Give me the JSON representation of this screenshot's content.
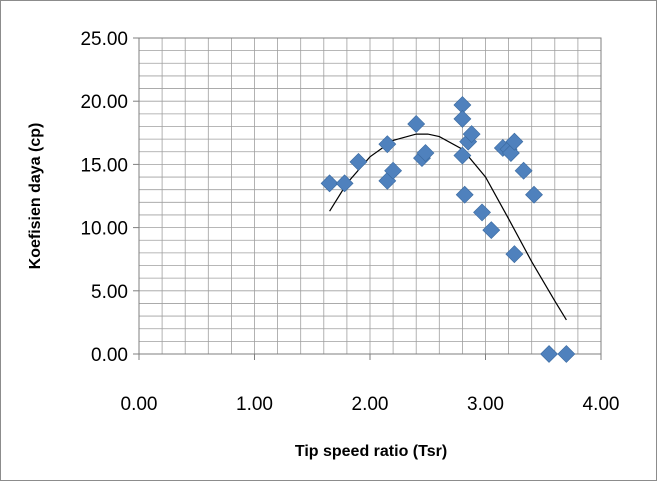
{
  "chart_data": {
    "type": "scatter",
    "title": "",
    "xlabel": "Tip speed ratio (Tsr)",
    "ylabel": "Koefisien daya (cp)",
    "xlim": [
      0,
      4
    ],
    "ylim": [
      0,
      25
    ],
    "x_ticks": [
      "0.00",
      "1.00",
      "2.00",
      "3.00",
      "4.00"
    ],
    "y_ticks": [
      "0.00",
      "5.00",
      "10.00",
      "15.00",
      "20.00",
      "25.00"
    ],
    "grid": true,
    "legend": "none",
    "marker": "diamond",
    "marker_color": "#4f81bd",
    "series": [
      {
        "values": [
          {
            "x": 1.65,
            "y": 13.5
          },
          {
            "x": 1.78,
            "y": 13.5
          },
          {
            "x": 1.9,
            "y": 15.2
          },
          {
            "x": 2.15,
            "y": 13.7
          },
          {
            "x": 2.15,
            "y": 16.6
          },
          {
            "x": 2.2,
            "y": 14.5
          },
          {
            "x": 2.4,
            "y": 18.2
          },
          {
            "x": 2.45,
            "y": 15.5
          },
          {
            "x": 2.48,
            "y": 15.9
          },
          {
            "x": 2.8,
            "y": 19.7
          },
          {
            "x": 2.8,
            "y": 18.6
          },
          {
            "x": 2.8,
            "y": 15.7
          },
          {
            "x": 2.82,
            "y": 12.6
          },
          {
            "x": 2.85,
            "y": 16.8
          },
          {
            "x": 2.88,
            "y": 17.4
          },
          {
            "x": 2.97,
            "y": 11.2
          },
          {
            "x": 3.05,
            "y": 9.8
          },
          {
            "x": 3.15,
            "y": 16.3
          },
          {
            "x": 3.2,
            "y": 16.2
          },
          {
            "x": 3.22,
            "y": 15.9
          },
          {
            "x": 3.25,
            "y": 16.8
          },
          {
            "x": 3.25,
            "y": 7.9
          },
          {
            "x": 3.33,
            "y": 14.5
          },
          {
            "x": 3.42,
            "y": 12.6
          },
          {
            "x": 3.55,
            "y": 0.0
          },
          {
            "x": 3.7,
            "y": 0.0
          }
        ]
      }
    ],
    "trendline": {
      "type": "polynomial",
      "color": "#000000",
      "x_range": [
        1.65,
        3.7
      ],
      "points": [
        {
          "x": 1.65,
          "y": 11.3
        },
        {
          "x": 1.8,
          "y": 13.5
        },
        {
          "x": 2.0,
          "y": 15.6
        },
        {
          "x": 2.2,
          "y": 16.9
        },
        {
          "x": 2.4,
          "y": 17.4
        },
        {
          "x": 2.5,
          "y": 17.4
        },
        {
          "x": 2.6,
          "y": 17.2
        },
        {
          "x": 2.8,
          "y": 16.2
        },
        {
          "x": 3.0,
          "y": 14.0
        },
        {
          "x": 3.2,
          "y": 10.7
        },
        {
          "x": 3.4,
          "y": 7.3
        },
        {
          "x": 3.6,
          "y": 4.2
        },
        {
          "x": 3.7,
          "y": 2.7
        }
      ]
    }
  }
}
